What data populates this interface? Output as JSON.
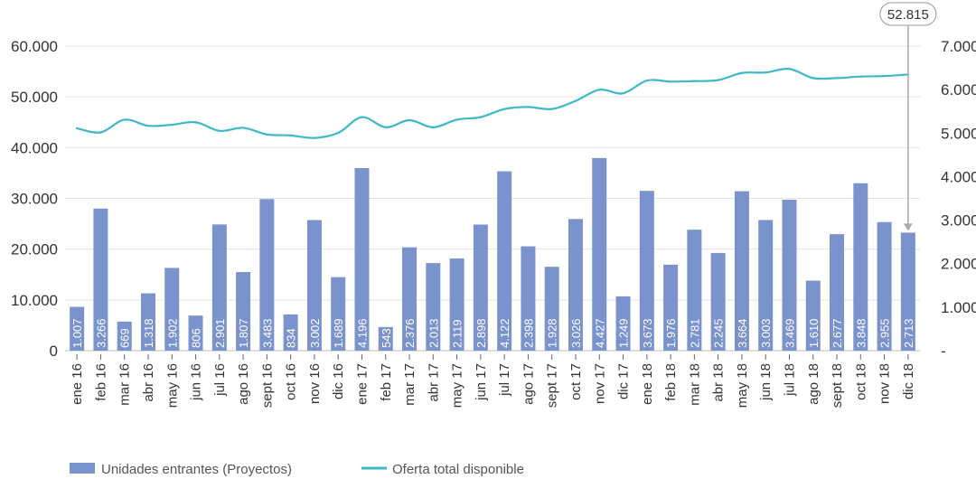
{
  "chart_data": {
    "type": "bar",
    "categories": [
      "ene 16",
      "feb 16",
      "mar 16",
      "abr 16",
      "may 16",
      "jun 16",
      "jul 16",
      "ago 16",
      "sept 16",
      "oct 16",
      "nov 16",
      "dic 16",
      "ene 17",
      "feb 17",
      "mar 17",
      "abr 17",
      "may 17",
      "jun 17",
      "jul 17",
      "ago 17",
      "sept 17",
      "oct 17",
      "nov 17",
      "dic 17",
      "ene 18",
      "feb 18",
      "mar 18",
      "abr 18",
      "may 18",
      "jun 18",
      "jul 18",
      "ago 18",
      "sept 18",
      "oct 18",
      "nov 18",
      "dic 18"
    ],
    "series": [
      {
        "name": "Unidades entrantes (Proyectos)",
        "type": "bar",
        "axis": "right",
        "color": "#7b93cc",
        "values": [
          1007,
          3266,
          669,
          1318,
          1902,
          806,
          2901,
          1807,
          3483,
          834,
          3002,
          1689,
          4196,
          543,
          2376,
          2013,
          2119,
          2898,
          4122,
          2398,
          1928,
          3026,
          4427,
          1249,
          3673,
          1976,
          2781,
          2245,
          3664,
          3003,
          3469,
          1610,
          2677,
          3848,
          2955,
          2713
        ],
        "labels": [
          "1.007",
          "3.266",
          "669",
          "1.318",
          "1.902",
          "806",
          "2.901",
          "1.807",
          "3.483",
          "834",
          "3.002",
          "1.689",
          "4.196",
          "543",
          "2.376",
          "2.013",
          "2.119",
          "2.898",
          "4.122",
          "2.398",
          "1.928",
          "3.026",
          "4.427",
          "1.249",
          "3.673",
          "1.976",
          "2.781",
          "2.245",
          "3.664",
          "3.003",
          "3.469",
          "1.610",
          "2.677",
          "3.848",
          "2.955",
          "2.713"
        ]
      },
      {
        "name": "Oferta total disponible",
        "type": "line",
        "axis": "left",
        "color": "#3fb8c9",
        "values": [
          43800,
          43000,
          45500,
          44300,
          44500,
          45000,
          43300,
          43900,
          42600,
          42400,
          41900,
          42900,
          46000,
          44000,
          45400,
          44000,
          45500,
          46000,
          47600,
          48000,
          47600,
          49200,
          51400,
          50700,
          53200,
          53000,
          53100,
          53300,
          54700,
          54800,
          55500,
          53700,
          53700,
          54000,
          54100,
          54400
        ]
      }
    ],
    "left_axis": {
      "ticks": [
        "0",
        "10.000",
        "20.000",
        "30.000",
        "40.000",
        "50.000",
        "60.000"
      ],
      "ylim": [
        0,
        60000
      ]
    },
    "right_axis": {
      "ticks": [
        "-",
        "1.000",
        "2.000",
        "3.000",
        "4.000",
        "5.000",
        "6.000",
        "7.000"
      ],
      "ylim": [
        0,
        7000
      ]
    },
    "annotation": {
      "text": "52.815",
      "category": "dic 18"
    },
    "grid": true,
    "legend_position": "bottom-left",
    "title": "",
    "xlabel": "",
    "ylabel": ""
  }
}
